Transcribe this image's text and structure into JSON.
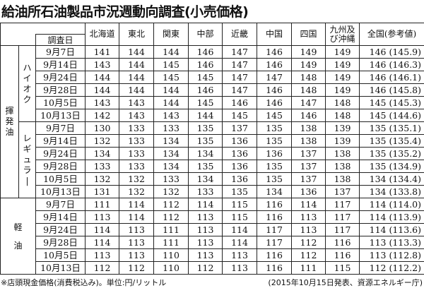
{
  "title": "給油所石油製品市況週動向調査(小売価格)",
  "header": {
    "date_label": "調査日",
    "regions": [
      "北海道",
      "東北",
      "関東",
      "中部",
      "近畿",
      "中国",
      "四国",
      "九州及び沖縄",
      "全国(参考値)"
    ]
  },
  "fuel_groups": [
    {
      "label": "揮発油",
      "sections": [
        "ハイオク",
        "レギュラー"
      ]
    },
    {
      "label": "軽油",
      "sections": [
        ""
      ]
    }
  ],
  "sections": [
    {
      "name": "ハイオク",
      "rows": [
        {
          "date": "9月7日",
          "values": [
            "141",
            "144",
            "144",
            "146",
            "147",
            "146",
            "149",
            "149",
            "146 (145.9)"
          ]
        },
        {
          "date": "9月14日",
          "values": [
            "143",
            "144",
            "145",
            "146",
            "147",
            "146",
            "149",
            "149",
            "146 (146.3)"
          ]
        },
        {
          "date": "9月24日",
          "values": [
            "144",
            "144",
            "145",
            "145",
            "147",
            "147",
            "148",
            "149",
            "146 (146.1)"
          ]
        },
        {
          "date": "9月28日",
          "values": [
            "144",
            "144",
            "144",
            "146",
            "147",
            "146",
            "148",
            "149",
            "146 (145.8)"
          ]
        },
        {
          "date": "10月5日",
          "values": [
            "143",
            "143",
            "144",
            "145",
            "146",
            "146",
            "147",
            "148",
            "145 (145.3)"
          ]
        },
        {
          "date": "10月13日",
          "values": [
            "142",
            "143",
            "143",
            "144",
            "145",
            "145",
            "146",
            "148",
            "145 (144.6)"
          ]
        }
      ]
    },
    {
      "name": "レギュラー",
      "rows": [
        {
          "date": "9月7日",
          "values": [
            "130",
            "133",
            "133",
            "135",
            "137",
            "135",
            "138",
            "139",
            "135 (135.1)"
          ]
        },
        {
          "date": "9月14日",
          "values": [
            "132",
            "133",
            "134",
            "135",
            "136",
            "135",
            "138",
            "139",
            "135 (135.4)"
          ]
        },
        {
          "date": "9月24日",
          "values": [
            "134",
            "133",
            "134",
            "134",
            "136",
            "136",
            "137",
            "138",
            "135 (135.2)"
          ]
        },
        {
          "date": "9月28日",
          "values": [
            "133",
            "133",
            "134",
            "135",
            "136",
            "135",
            "137",
            "138",
            "135 (134.9)"
          ]
        },
        {
          "date": "10月5日",
          "values": [
            "132",
            "132",
            "133",
            "134",
            "136",
            "135",
            "137",
            "138",
            "134 (134.4)"
          ]
        },
        {
          "date": "10月13日",
          "values": [
            "131",
            "132",
            "132",
            "133",
            "135",
            "134",
            "136",
            "137",
            "134 (133.8)"
          ]
        }
      ]
    },
    {
      "name": "軽油",
      "rows": [
        {
          "date": "9月7日",
          "values": [
            "111",
            "114",
            "112",
            "114",
            "115",
            "116",
            "114",
            "117",
            "114 (114.0)"
          ]
        },
        {
          "date": "9月14日",
          "values": [
            "113",
            "114",
            "112",
            "113",
            "115",
            "116",
            "113",
            "117",
            "114 (113.9)"
          ]
        },
        {
          "date": "9月24日",
          "values": [
            "114",
            "113",
            "111",
            "113",
            "114",
            "117",
            "113",
            "117",
            "114 (113.6)"
          ]
        },
        {
          "date": "9月28日",
          "values": [
            "114",
            "113",
            "111",
            "113",
            "114",
            "117",
            "112",
            "116",
            "113 (113.3)"
          ]
        },
        {
          "date": "10月5日",
          "values": [
            "113",
            "113",
            "110",
            "113",
            "113",
            "116",
            "112",
            "116",
            "113 (112.8)"
          ]
        },
        {
          "date": "10月13日",
          "values": [
            "112",
            "112",
            "110",
            "112",
            "113",
            "116",
            "111",
            "115",
            "112 (112.2)"
          ]
        }
      ]
    }
  ],
  "footnote_left": "※店頭現金価格(消費税込み)。単位:円/リットル",
  "footnote_right": "(2015年10月15日発表、資源エネルギー庁)"
}
